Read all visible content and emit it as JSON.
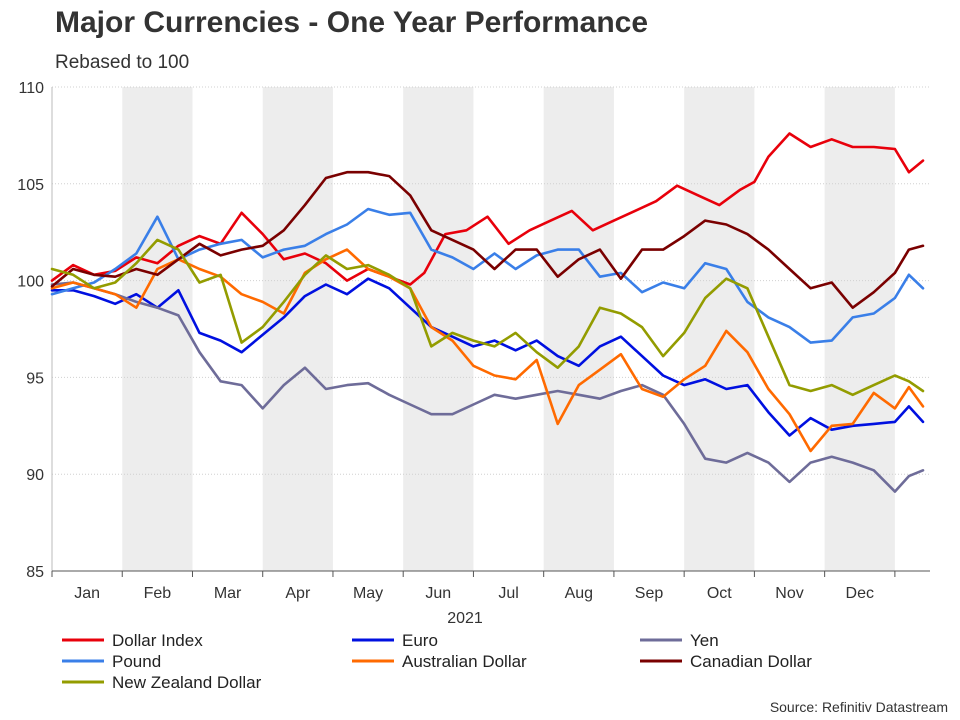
{
  "title": "Major Currencies - One Year Performance",
  "subtitle": "Rebased to 100",
  "source": "Source: Refinitiv Datastream",
  "chart_data": {
    "type": "line",
    "title": "Major Currencies - One Year Performance",
    "subtitle": "Rebased to 100",
    "xlabel": "2021",
    "ylabel": "",
    "x_unit": "month index (0 = start of Jan, 12 = end of Dec)",
    "xlim": [
      0,
      12.5
    ],
    "ylim": [
      85,
      110
    ],
    "yticks": [
      85,
      90,
      95,
      100,
      105,
      110
    ],
    "month_labels": [
      "Jan",
      "Feb",
      "Mar",
      "Apr",
      "May",
      "Jun",
      "Jul",
      "Aug",
      "Sep",
      "Oct",
      "Nov",
      "Dec"
    ],
    "shaded_months": [
      1,
      3,
      5,
      7,
      9,
      11
    ],
    "legend_position": "bottom",
    "series": [
      {
        "name": "Dollar Index",
        "color": "#e8000b",
        "x": [
          0,
          0.3,
          0.6,
          0.9,
          1.2,
          1.5,
          1.8,
          2.1,
          2.4,
          2.7,
          3.0,
          3.3,
          3.6,
          3.9,
          4.2,
          4.5,
          4.8,
          5.1,
          5.3,
          5.6,
          5.9,
          6.2,
          6.5,
          6.8,
          7.1,
          7.4,
          7.7,
          8.0,
          8.3,
          8.6,
          8.9,
          9.2,
          9.5,
          9.8,
          10.0,
          10.2,
          10.5,
          10.8,
          11.1,
          11.4,
          11.7,
          12.0,
          12.2,
          12.4
        ],
        "y": [
          100,
          100.8,
          100.3,
          100.5,
          101.2,
          100.9,
          101.8,
          102.3,
          101.9,
          103.5,
          102.4,
          101.1,
          101.4,
          100.9,
          100,
          100.6,
          100.2,
          99.8,
          100.4,
          102.4,
          102.6,
          103.3,
          101.9,
          102.6,
          103.1,
          103.6,
          102.6,
          103.1,
          103.6,
          104.1,
          104.9,
          104.4,
          103.9,
          104.7,
          105.1,
          106.4,
          107.6,
          106.9,
          107.3,
          106.9,
          106.9,
          106.8,
          105.6,
          106.2
        ]
      },
      {
        "name": "Euro",
        "color": "#0010e0",
        "x": [
          0,
          0.3,
          0.6,
          0.9,
          1.2,
          1.5,
          1.8,
          2.1,
          2.4,
          2.7,
          3.0,
          3.3,
          3.6,
          3.9,
          4.2,
          4.5,
          4.8,
          5.1,
          5.4,
          5.7,
          6.0,
          6.3,
          6.6,
          6.9,
          7.2,
          7.5,
          7.8,
          8.1,
          8.4,
          8.7,
          9.0,
          9.3,
          9.6,
          9.9,
          10.2,
          10.5,
          10.8,
          11.1,
          11.4,
          11.7,
          12.0,
          12.2,
          12.4
        ],
        "y": [
          99.5,
          99.5,
          99.2,
          98.8,
          99.3,
          98.6,
          99.5,
          97.3,
          96.9,
          96.3,
          97.2,
          98.1,
          99.2,
          99.8,
          99.3,
          100.1,
          99.6,
          98.6,
          97.6,
          97.1,
          96.6,
          96.9,
          96.4,
          96.9,
          96.1,
          95.6,
          96.6,
          97.1,
          96.1,
          95.1,
          94.6,
          94.9,
          94.4,
          94.6,
          93.2,
          92.0,
          92.9,
          92.3,
          92.5,
          92.6,
          92.7,
          93.5,
          92.7
        ]
      },
      {
        "name": "Yen",
        "color": "#6e6c99",
        "x": [
          0,
          0.3,
          0.6,
          0.9,
          1.2,
          1.5,
          1.8,
          2.1,
          2.4,
          2.7,
          3.0,
          3.3,
          3.6,
          3.9,
          4.2,
          4.5,
          4.8,
          5.1,
          5.4,
          5.7,
          6.0,
          6.3,
          6.6,
          6.9,
          7.2,
          7.5,
          7.8,
          8.1,
          8.4,
          8.7,
          9.0,
          9.3,
          9.6,
          9.9,
          10.2,
          10.5,
          10.8,
          11.1,
          11.4,
          11.7,
          12.0,
          12.2,
          12.4
        ],
        "y": [
          99.8,
          99.9,
          99.6,
          99.3,
          98.9,
          98.6,
          98.2,
          96.3,
          94.8,
          94.6,
          93.4,
          94.6,
          95.5,
          94.4,
          94.6,
          94.7,
          94.1,
          93.6,
          93.1,
          93.1,
          93.6,
          94.1,
          93.9,
          94.1,
          94.3,
          94.1,
          93.9,
          94.3,
          94.6,
          94.1,
          92.6,
          90.8,
          90.6,
          91.1,
          90.6,
          89.6,
          90.6,
          90.9,
          90.6,
          90.2,
          89.1,
          89.9,
          90.2
        ]
      },
      {
        "name": "Pound",
        "color": "#3a7fe8",
        "x": [
          0,
          0.3,
          0.6,
          0.9,
          1.2,
          1.5,
          1.8,
          2.1,
          2.4,
          2.7,
          3.0,
          3.3,
          3.6,
          3.9,
          4.2,
          4.5,
          4.8,
          5.1,
          5.4,
          5.7,
          6.0,
          6.3,
          6.6,
          6.9,
          7.2,
          7.5,
          7.8,
          8.1,
          8.4,
          8.7,
          9.0,
          9.3,
          9.6,
          9.9,
          10.2,
          10.5,
          10.8,
          11.1,
          11.4,
          11.7,
          12.0,
          12.2,
          12.4
        ],
        "y": [
          99.3,
          99.6,
          99.9,
          100.6,
          101.4,
          103.3,
          101.1,
          101.6,
          101.9,
          102.1,
          101.2,
          101.6,
          101.8,
          102.4,
          102.9,
          103.7,
          103.4,
          103.5,
          101.6,
          101.2,
          100.6,
          101.4,
          100.6,
          101.3,
          101.6,
          101.6,
          100.2,
          100.4,
          99.4,
          99.9,
          99.6,
          100.9,
          100.6,
          98.9,
          98.1,
          97.6,
          96.8,
          96.9,
          98.1,
          98.3,
          99.1,
          100.3,
          99.6
        ]
      },
      {
        "name": "Australian Dollar",
        "color": "#ff6a00",
        "x": [
          0,
          0.3,
          0.6,
          0.9,
          1.2,
          1.5,
          1.8,
          2.1,
          2.4,
          2.7,
          3.0,
          3.3,
          3.6,
          3.9,
          4.2,
          4.5,
          4.8,
          5.1,
          5.4,
          5.7,
          6.0,
          6.3,
          6.6,
          6.9,
          7.2,
          7.5,
          7.8,
          8.1,
          8.4,
          8.7,
          9.0,
          9.3,
          9.6,
          9.9,
          10.2,
          10.5,
          10.8,
          11.1,
          11.4,
          11.7,
          12.0,
          12.2,
          12.4
        ],
        "y": [
          99.6,
          99.9,
          99.6,
          99.3,
          98.6,
          100.6,
          101.1,
          100.6,
          100.2,
          99.3,
          98.9,
          98.3,
          100.4,
          101.1,
          101.6,
          100.6,
          100.2,
          99.6,
          97.6,
          96.9,
          95.6,
          95.1,
          94.9,
          95.9,
          92.6,
          94.6,
          95.4,
          96.2,
          94.4,
          94.0,
          94.9,
          95.6,
          97.4,
          96.3,
          94.4,
          93.1,
          91.2,
          92.5,
          92.6,
          94.2,
          93.4,
          94.5,
          93.5
        ]
      },
      {
        "name": "Canadian Dollar",
        "color": "#7a0000",
        "x": [
          0,
          0.3,
          0.6,
          0.9,
          1.2,
          1.5,
          1.8,
          2.1,
          2.4,
          2.7,
          3.0,
          3.3,
          3.6,
          3.9,
          4.2,
          4.5,
          4.8,
          5.1,
          5.4,
          5.7,
          6.0,
          6.3,
          6.6,
          6.9,
          7.2,
          7.5,
          7.8,
          8.1,
          8.4,
          8.7,
          9.0,
          9.3,
          9.6,
          9.9,
          10.2,
          10.5,
          10.8,
          11.1,
          11.4,
          11.7,
          12.0,
          12.2,
          12.4
        ],
        "y": [
          99.7,
          100.6,
          100.3,
          100.2,
          100.6,
          100.3,
          101.1,
          101.9,
          101.3,
          101.6,
          101.8,
          102.6,
          103.9,
          105.3,
          105.6,
          105.6,
          105.4,
          104.4,
          102.6,
          102.1,
          101.6,
          100.6,
          101.6,
          101.6,
          100.2,
          101.1,
          101.6,
          100.1,
          101.6,
          101.6,
          102.3,
          103.1,
          102.9,
          102.4,
          101.6,
          100.6,
          99.6,
          99.9,
          98.6,
          99.4,
          100.4,
          101.6,
          101.8
        ]
      },
      {
        "name": "New Zealand Dollar",
        "color": "#939c00",
        "x": [
          0,
          0.3,
          0.6,
          0.9,
          1.2,
          1.5,
          1.8,
          2.1,
          2.4,
          2.7,
          3.0,
          3.3,
          3.6,
          3.9,
          4.2,
          4.5,
          4.8,
          5.1,
          5.4,
          5.7,
          6.0,
          6.3,
          6.6,
          6.9,
          7.2,
          7.5,
          7.8,
          8.1,
          8.4,
          8.7,
          9.0,
          9.3,
          9.6,
          9.9,
          10.2,
          10.5,
          10.8,
          11.1,
          11.4,
          11.7,
          12.0,
          12.2,
          12.4
        ],
        "y": [
          100.6,
          100.3,
          99.6,
          99.9,
          100.9,
          102.1,
          101.6,
          99.9,
          100.3,
          96.8,
          97.6,
          98.9,
          100.3,
          101.3,
          100.6,
          100.8,
          100.3,
          99.6,
          96.6,
          97.3,
          96.9,
          96.6,
          97.3,
          96.3,
          95.5,
          96.6,
          98.6,
          98.3,
          97.6,
          96.1,
          97.3,
          99.1,
          100.1,
          99.6,
          97.1,
          94.6,
          94.3,
          94.6,
          94.1,
          94.6,
          95.1,
          94.8,
          94.3
        ]
      }
    ]
  }
}
